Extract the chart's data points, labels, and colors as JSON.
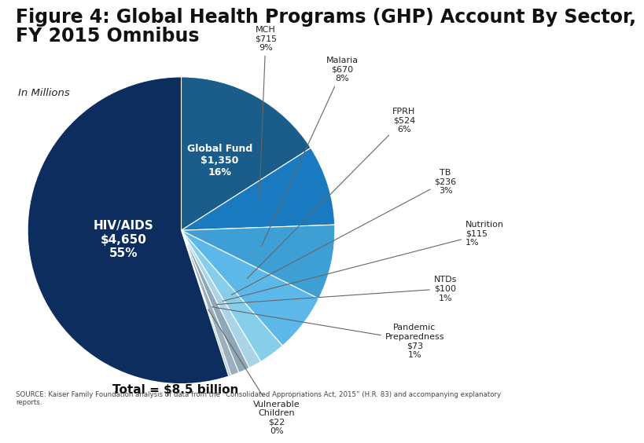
{
  "title_line1": "Figure 4: Global Health Programs (GHP) Account By Sector,",
  "title_line2": "FY 2015 Omnibus",
  "subtitle": "In Millions",
  "total_label": "Total = $8.5 billion",
  "source": "SOURCE: Kaiser Family Foundation analysis of data from the “Consolidated Appropriations Act, 2015” (H.R. 83) and accompanying explanatory\nreports.",
  "sectors": [
    {
      "name": "HIV/AIDS",
      "value": 4650,
      "pct": "55%",
      "color": "#0d2d5e",
      "internal": true
    },
    {
      "name": "Global Fund",
      "value": 1350,
      "pct": "16%",
      "color": "#1a5c8a",
      "internal": true
    },
    {
      "name": "MCH",
      "value": 715,
      "pct": "9%",
      "color": "#1a7abf",
      "internal": false
    },
    {
      "name": "Malaria",
      "value": 670,
      "pct": "8%",
      "color": "#3d9fd3",
      "internal": false
    },
    {
      "name": "FPRH",
      "value": 524,
      "pct": "6%",
      "color": "#5bb8e8",
      "internal": false
    },
    {
      "name": "TB",
      "value": 236,
      "pct": "3%",
      "color": "#87ceeb",
      "internal": false
    },
    {
      "name": "Nutrition",
      "value": 115,
      "pct": "1%",
      "color": "#aad4e8",
      "internal": false
    },
    {
      "name": "NTDs",
      "value": 100,
      "pct": "1%",
      "color": "#8fa8b8",
      "internal": false
    },
    {
      "name": "Pandemic\nPreparedness",
      "value": 73,
      "pct": "1%",
      "color": "#9bb0bf",
      "internal": false
    },
    {
      "name": "Vulnerable\nChildren",
      "value": 22,
      "pct": "0%",
      "color": "#b8c8d4",
      "internal": false
    }
  ],
  "bg_color": "#ffffff",
  "title_fontsize": 17,
  "outside_label_color": "#222222",
  "inside_label_color": "#ffffff"
}
